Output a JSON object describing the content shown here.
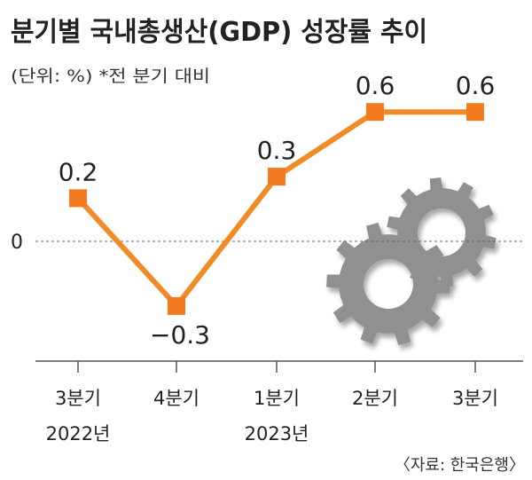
{
  "chart_data": {
    "type": "line",
    "title": "분기별 국내총생산(GDP) 성장률 추이",
    "subtitle": "(단위: %) *전 분기 대비",
    "source": "〈자료: 한국은행〉",
    "categories": [
      {
        "quarter": "3분기",
        "year": "2022년"
      },
      {
        "quarter": "4분기",
        "year": ""
      },
      {
        "quarter": "1분기",
        "year": "2023년"
      },
      {
        "quarter": "2분기",
        "year": ""
      },
      {
        "quarter": "3분기",
        "year": ""
      }
    ],
    "values": [
      0.2,
      -0.3,
      0.3,
      0.6,
      0.6
    ],
    "value_labels": [
      "0.2",
      "−0.3",
      "0.3",
      "0.6",
      "0.6"
    ],
    "zero_label": "0",
    "ylim": [
      -0.5,
      0.75
    ],
    "grid": false,
    "colors": {
      "line": "#f08c28",
      "marker": "#f47a20",
      "gear": "#909090",
      "axis": "#555555"
    }
  }
}
